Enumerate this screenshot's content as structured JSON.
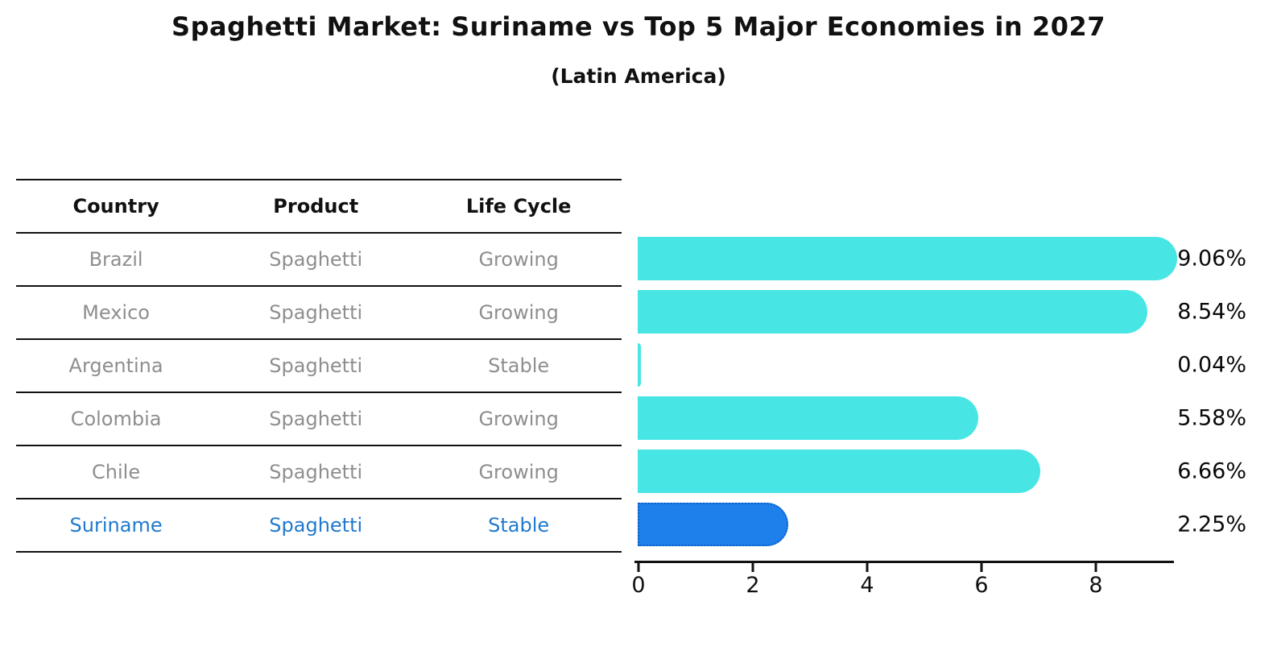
{
  "title": "Spaghetti Market: Suriname vs Top 5 Major Economies in 2027",
  "subtitle": "(Latin America)",
  "table": {
    "columns": [
      "Country",
      "Product",
      "Life Cycle"
    ],
    "rows": [
      {
        "country": "Brazil",
        "product": "Spaghetti",
        "life_cycle": "Growing",
        "highlight": false
      },
      {
        "country": "Mexico",
        "product": "Spaghetti",
        "life_cycle": "Growing",
        "highlight": false
      },
      {
        "country": "Argentina",
        "product": "Spaghetti",
        "life_cycle": "Stable",
        "highlight": false
      },
      {
        "country": "Colombia",
        "product": "Spaghetti",
        "life_cycle": "Growing",
        "highlight": false
      },
      {
        "country": "Chile",
        "product": "Spaghetti",
        "life_cycle": "Growing",
        "highlight": false
      },
      {
        "country": "Suriname",
        "product": "Spaghetti",
        "life_cycle": "Stable",
        "highlight": true
      }
    ]
  },
  "chart_data": {
    "type": "bar",
    "orientation": "horizontal",
    "title": "Spaghetti Market: Suriname vs Top 5 Major Economies in 2027 (Latin America)",
    "categories": [
      "Brazil",
      "Mexico",
      "Argentina",
      "Colombia",
      "Chile",
      "Suriname"
    ],
    "values": [
      9.06,
      8.54,
      0.04,
      5.58,
      6.66,
      2.25
    ],
    "value_labels": [
      "9.06%",
      "8.54%",
      "0.04%",
      "5.58%",
      "6.66%",
      "2.25%"
    ],
    "xlabel": "",
    "ylabel": "",
    "xlim": [
      0,
      9.4
    ],
    "xticks": [
      0,
      2,
      4,
      6,
      8
    ],
    "grid": false,
    "legend": null,
    "highlight_index": 5,
    "bar_color": "#48e5e5",
    "highlight_bar_color": "#1e80ea",
    "highlight_border_color": "#0e5fc8",
    "highlight_text_color": "#2079ce"
  }
}
